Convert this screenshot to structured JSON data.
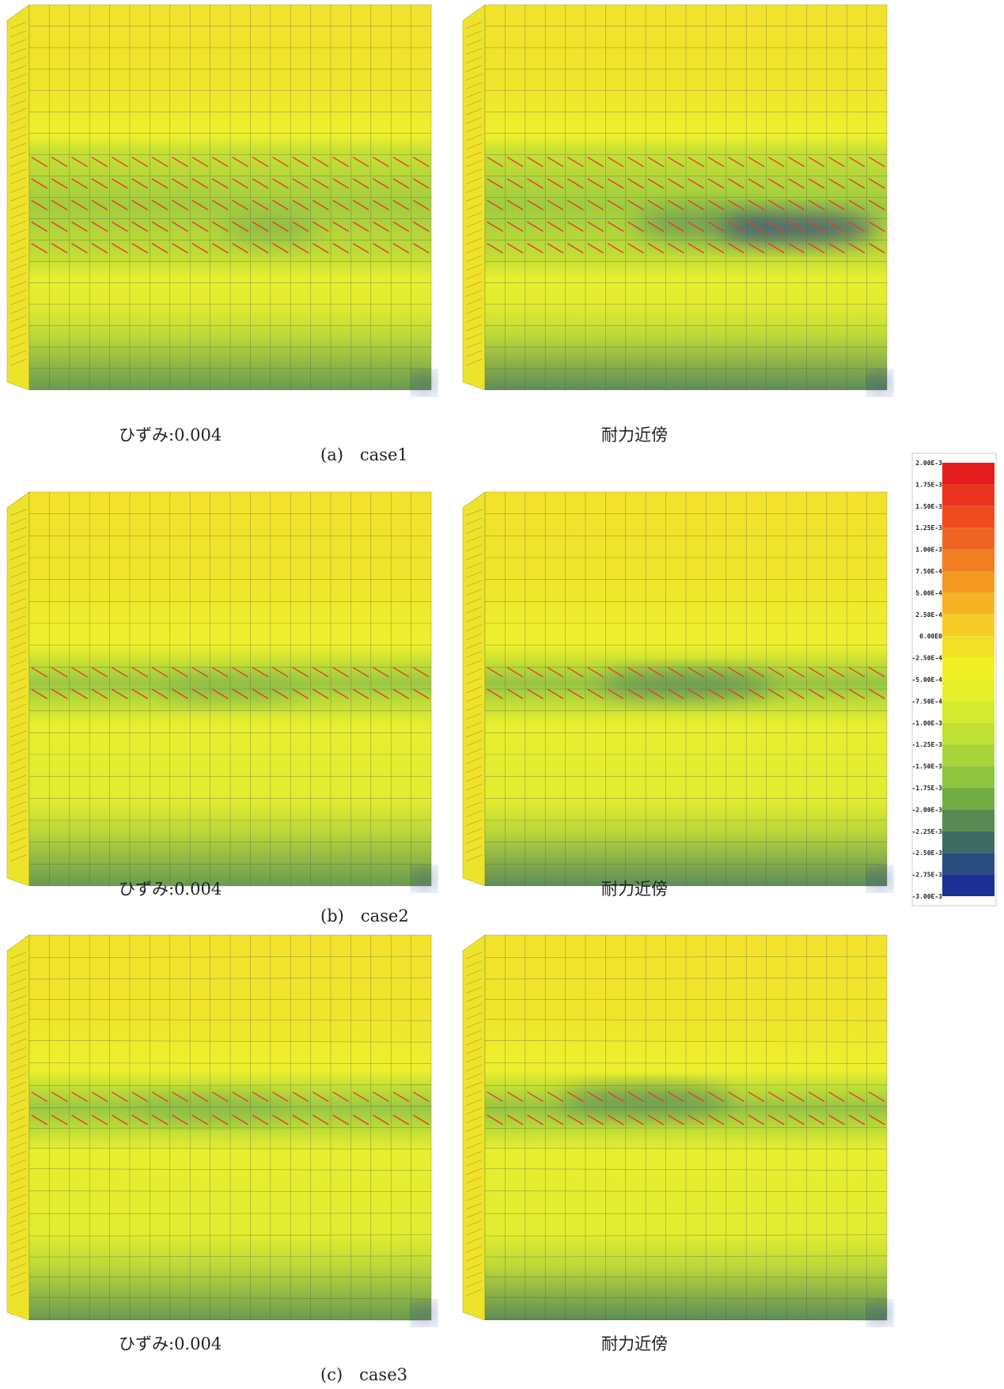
{
  "figure": {
    "rows": [
      {
        "left_label": "ひずみ:0.004",
        "right_label": "耐力近傍",
        "caption": "(a)　case1"
      },
      {
        "left_label": "ひずみ:0.004",
        "right_label": "耐力近傍",
        "caption": "(b)　case2"
      },
      {
        "left_label": "ひずみ:0.004",
        "right_label": "耐力近傍",
        "caption": "(c)　case3"
      }
    ],
    "legend": {
      "labels": [
        "2.00E-3",
        "1.75E-3",
        "1.50E-3",
        "1.25E-3",
        "1.00E-3",
        "7.50E-4",
        "5.00E-4",
        "2.50E-4",
        "0.00E0",
        "-2.50E-4",
        "-5.00E-4",
        "-7.50E-4",
        "-1.00E-3",
        "-1.25E-3",
        "-1.50E-3",
        "-1.75E-3",
        "-2.00E-3",
        "-2.25E-3",
        "-2.50E-3",
        "-2.75E-3",
        "-3.00E-3"
      ],
      "colors": [
        "#e41e1e",
        "#ea3420",
        "#ee4c20",
        "#f06422",
        "#f27e22",
        "#f49a22",
        "#f6b424",
        "#f8cc26",
        "#f2e026",
        "#f2f024",
        "#e6f02a",
        "#d4ea2e",
        "#c0e034",
        "#a8d43a",
        "#8ec440",
        "#74ac44",
        "#588a52",
        "#3e6a62",
        "#2a4c80",
        "#1c3094"
      ]
    }
  }
}
